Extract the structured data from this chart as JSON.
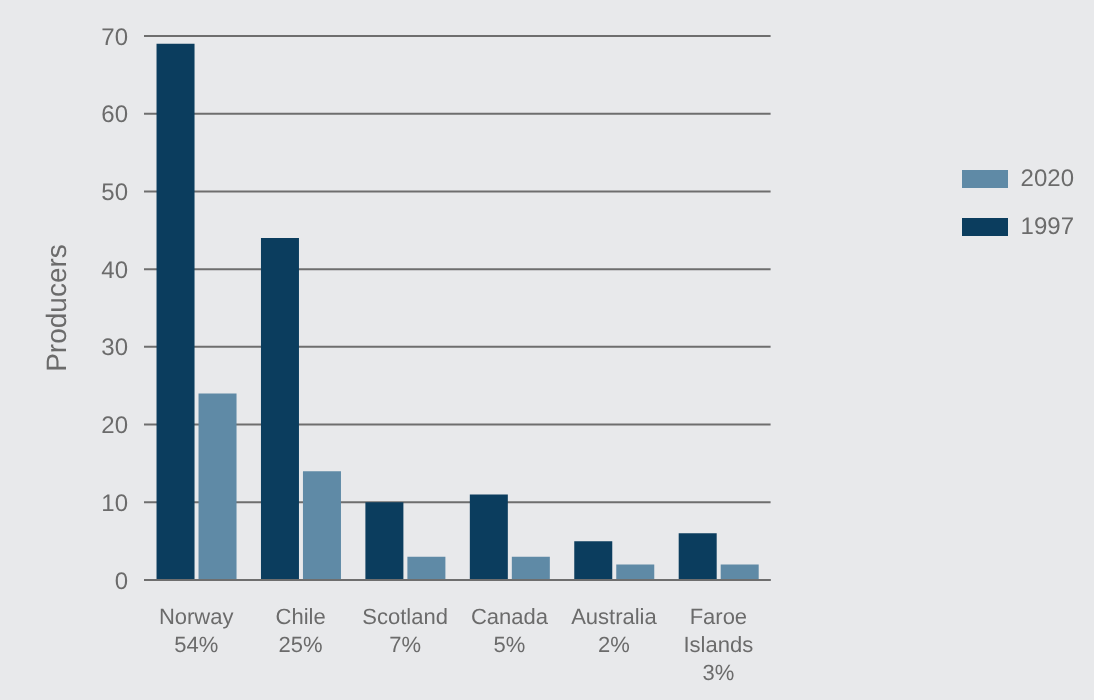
{
  "chart_data": {
    "type": "bar",
    "ylabel": "Producers",
    "categories": [
      "Norway\n54%",
      "Chile\n25%",
      "Scotland\n7%",
      "Canada\n5%",
      "Australia\n2%",
      "Faroe\nIslands\n3%"
    ],
    "series": [
      {
        "name": "1997",
        "color": "#0b3d5e",
        "values": [
          69,
          44,
          10,
          11,
          5,
          6
        ]
      },
      {
        "name": "2020",
        "color": "#5f8aa6",
        "values": [
          24,
          14,
          3,
          3,
          2,
          2
        ]
      }
    ],
    "ylim": [
      0,
      70
    ],
    "yticks": [
      0,
      10,
      20,
      30,
      40,
      50,
      60,
      70
    ],
    "grid": "y",
    "legend": "right"
  }
}
